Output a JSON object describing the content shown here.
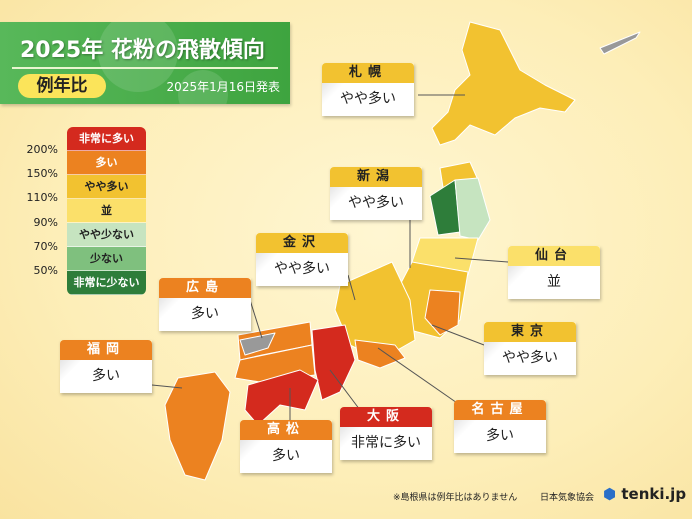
{
  "header": {
    "title": "2025年 花粉の飛散傾向",
    "subtitle_badge": "例年比",
    "date": "2025年1月16日発表"
  },
  "legend": {
    "items": [
      {
        "label": "非常に多い",
        "color": "#d42a1e",
        "text": "#fff"
      },
      {
        "label": "多い",
        "color": "#ec8220",
        "text": "#fff"
      },
      {
        "label": "やや多い",
        "color": "#f2c230",
        "text": "#222"
      },
      {
        "label": "並",
        "color": "#fbe06a",
        "text": "#222"
      },
      {
        "label": "やや少ない",
        "color": "#c6e4c0",
        "text": "#222"
      },
      {
        "label": "少ない",
        "color": "#7fc07e",
        "text": "#222"
      },
      {
        "label": "非常に少ない",
        "color": "#2e7d3a",
        "text": "#fff"
      }
    ],
    "thresholds": [
      "200%",
      "150%",
      "110%",
      "90%",
      "70%",
      "50%"
    ]
  },
  "cities": [
    {
      "name": "札幌",
      "level": "やや多い",
      "color": "#f2c230"
    },
    {
      "name": "新潟",
      "level": "やや多い",
      "color": "#f2c230"
    },
    {
      "name": "金沢",
      "level": "やや多い",
      "color": "#f2c230"
    },
    {
      "name": "仙台",
      "level": "並",
      "color": "#fbe06a"
    },
    {
      "name": "広島",
      "level": "多い",
      "color": "#ec8220"
    },
    {
      "name": "東京",
      "level": "やや多い",
      "color": "#f2c230"
    },
    {
      "name": "福岡",
      "level": "多い",
      "color": "#ec8220"
    },
    {
      "name": "名古屋",
      "level": "多い",
      "color": "#ec8220"
    },
    {
      "name": "大阪",
      "level": "非常に多い",
      "color": "#d42a1e"
    },
    {
      "name": "高松",
      "level": "多い",
      "color": "#ec8220"
    }
  ],
  "footer": {
    "note": "※島根県は例年比はありません",
    "org": "日本気象協会",
    "logo": "tenki.jp"
  }
}
